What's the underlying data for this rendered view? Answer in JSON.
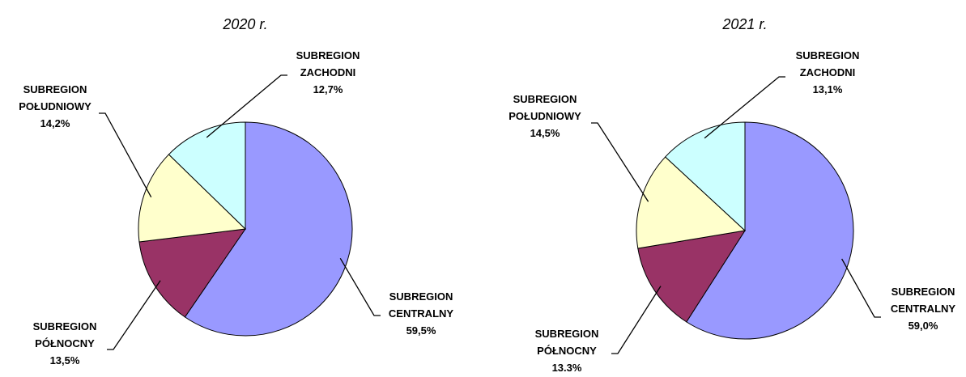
{
  "chart_data": [
    {
      "type": "pie",
      "title": "2020 r.",
      "categories": [
        "SUBREGION CENTRALNY",
        "SUBREGION PÓŁNOCNY",
        "SUBREGION POŁUDNIOWY",
        "SUBREGION ZACHODNI"
      ],
      "values": [
        59.5,
        13.5,
        14.2,
        12.7
      ],
      "value_labels": [
        "59,5%",
        "13,5%",
        "14,2%",
        "12,7%"
      ],
      "colors": [
        "#9999ff",
        "#993366",
        "#ffffcc",
        "#ccffff"
      ]
    },
    {
      "type": "pie",
      "title": "2021 r.",
      "categories": [
        "SUBREGION CENTRALNY",
        "SUBREGION PÓŁNOCNY",
        "SUBREGION POŁUDNIOWY",
        "SUBREGION ZACHODNI"
      ],
      "values": [
        59.0,
        13.3,
        14.5,
        13.1
      ],
      "value_labels": [
        "59,0%",
        "13.3%",
        "14,5%",
        "13,1%"
      ],
      "colors": [
        "#9999ff",
        "#993366",
        "#ffffcc",
        "#ccffff"
      ]
    }
  ]
}
